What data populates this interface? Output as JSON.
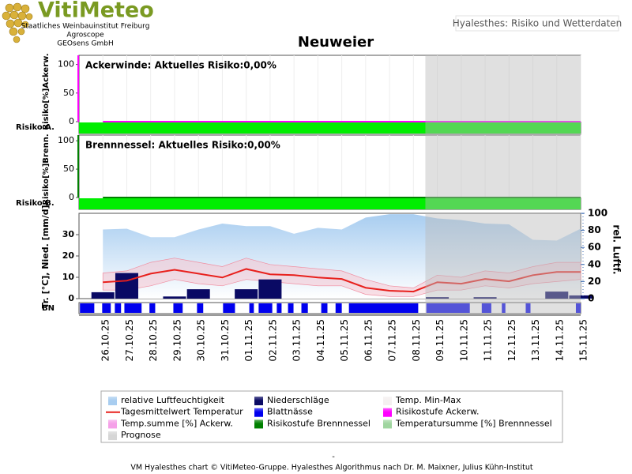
{
  "header": {
    "logo": "VitiMeteo",
    "org": [
      "Staatliches Weinbauinstitut Freiburg",
      "Agroscope",
      "GEOsens GmbH"
    ],
    "badge": "Hyalesthes: Risiko und Wetterdaten"
  },
  "chart_data": {
    "type": "line",
    "title": "Neuweier",
    "categories": [
      "26.10.25",
      "27.10.25",
      "28.10.25",
      "29.10.25",
      "30.10.25",
      "31.10.25",
      "01.11.25",
      "02.11.25",
      "03.11.25",
      "04.11.25",
      "05.11.25",
      "06.11.25",
      "07.11.25",
      "08.11.25",
      "09.11.25",
      "10.11.25",
      "11.11.25",
      "12.11.25",
      "13.11.25",
      "14.11.25",
      "15.11.25"
    ],
    "xlim": [
      -1,
      20
    ],
    "prognose_from": 13.5,
    "prognose_color": "#bbbbbb",
    "risk_panels": [
      {
        "annotation": "Ackerwinde: Aktuelles Risiko:0,00%",
        "ylabel": "Risiko[%]Ackerw.",
        "strip_label": "Risiko A.",
        "ylim": [
          0,
          116
        ],
        "yticks": [
          0,
          50,
          100
        ],
        "line_color": "#ff00ff",
        "level_color": "#00ee00",
        "values": [
          0,
          0,
          0,
          0,
          0,
          0,
          0,
          0,
          0,
          0,
          0,
          0,
          0,
          0,
          0,
          0,
          0,
          0,
          0,
          0,
          0
        ]
      },
      {
        "annotation": "Brennnessel: Aktuelles Risiko:0,00%",
        "ylabel": "Risiko[%]Brenn.",
        "strip_label": "Risiko B.",
        "ylim": [
          0,
          110
        ],
        "yticks": [
          0,
          50,
          100
        ],
        "line_color": "#008000",
        "level_color": "#00ee00",
        "values": [
          0,
          0,
          0,
          0,
          0,
          0,
          0,
          0,
          0,
          0,
          0,
          0,
          0,
          0,
          0,
          0,
          0,
          0,
          0,
          0,
          0
        ]
      }
    ],
    "weather": {
      "ylabel": "Tr. [°C], Nied. [mm/d]",
      "ylim": [
        0,
        40
      ],
      "yticks": [
        0,
        10,
        20,
        30
      ],
      "y2label": "rel. Luftf.",
      "y2lim": [
        0,
        100
      ],
      "y2ticks": [
        0,
        20,
        40,
        60,
        80,
        100
      ],
      "strip_label": "BN",
      "series": [
        {
          "color": "#a8cdf0",
          "axis": "y2",
          "values": [
            81,
            82,
            72,
            72,
            81,
            88,
            85,
            85,
            76,
            83,
            81,
            95,
            99,
            99,
            94,
            92,
            88,
            87,
            69,
            68,
            82
          ]
        },
        {
          "color": "#e8201c",
          "values": [
            7.7,
            8.4,
            11.7,
            13.5,
            11.7,
            9.9,
            13.9,
            11.4,
            11,
            9.9,
            9.2,
            5.1,
            3.7,
            3.3,
            7.7,
            7,
            9.2,
            8.1,
            11,
            12.5,
            12.5
          ]
        },
        {
          "color": "#f6c4cf",
          "low": [
            4,
            4,
            6,
            9,
            7,
            6,
            9,
            8,
            7,
            6,
            6,
            2,
            1,
            1,
            4,
            4,
            6,
            5,
            7,
            8,
            9
          ],
          "high": [
            12,
            13,
            17,
            19,
            17,
            15,
            19,
            16,
            15,
            14,
            13,
            9,
            6,
            5,
            11,
            10,
            13,
            12,
            15,
            17,
            17
          ]
        },
        {
          "color": "#0a0a64",
          "values": [
            3,
            12,
            0,
            1,
            4.4,
            0,
            4.4,
            9,
            0,
            0,
            0,
            0,
            0,
            0,
            0.7,
            0,
            0.7,
            0,
            0,
            3.3,
            1.5
          ]
        },
        {
          "color": "#0000ee",
          "intervals": [
            [
              -0.96,
              -0.36
            ],
            [
              -0.03,
              0.33
            ],
            [
              0.5,
              0.76
            ],
            [
              0.9,
              1.62
            ],
            [
              1.95,
              2.19
            ],
            [
              2.95,
              3.34
            ],
            [
              3.94,
              4.2
            ],
            [
              5.03,
              5.53
            ],
            [
              6.13,
              6.32
            ],
            [
              6.52,
              7.09
            ],
            [
              7.28,
              7.48
            ],
            [
              7.75,
              7.98
            ],
            [
              8.31,
              8.58
            ],
            [
              9.14,
              9.4
            ],
            [
              9.74,
              10.0
            ],
            [
              10.3,
              13.2
            ],
            [
              13.54,
              15.36
            ],
            [
              15.86,
              16.26
            ],
            [
              16.7,
              16.85
            ],
            [
              17.7,
              17.9
            ],
            [
              19.8,
              20
            ]
          ]
        }
      ]
    },
    "legend": [
      {
        "name": "relative Luftfeuchtigkeit",
        "color": "#a8cdf0"
      },
      {
        "name": "Niederschläge",
        "color": "#0a0a64"
      },
      {
        "name": "Temp. Min-Max",
        "color": "#f4f0f0"
      },
      {
        "name": "Tagesmittelwert Temperatur",
        "color": "#e8201c",
        "style": "line"
      },
      {
        "name": "Blattnässe",
        "color": "#0000ee"
      },
      {
        "name": "Risikostufe Ackerw.",
        "color": "#ff00ff"
      },
      {
        "name": "Temp.summe [%] Ackerw.",
        "color": "#f5a0e8"
      },
      {
        "name": "Risikostufe Brennnessel",
        "color": "#008000"
      },
      {
        "name": "Temperatursumme [%] Brennnessel",
        "color": "#9fd59f"
      },
      {
        "name": "Prognose",
        "color": "#d6d6d6"
      }
    ],
    "footer_dash": "-",
    "footer": "VM Hyalesthes chart © VitiMeteo-Gruppe. Hyalesthes Algorithmus nach Dr. M. Maixner, Julius Kühn-Institut"
  }
}
